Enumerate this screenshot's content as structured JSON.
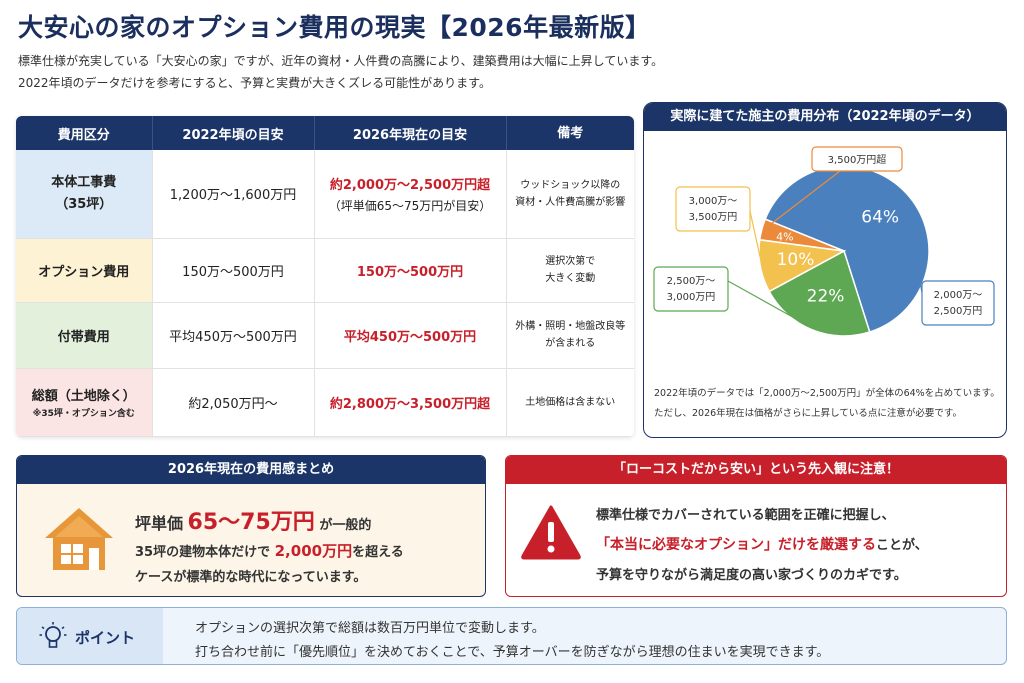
{
  "title": "大安心の家のオプション費用の現実【2026年最新版】",
  "intro": [
    "標準仕様が充実している「大安心の家」ですが、近年の資材・人件費の高騰により、建築費用は大幅に上昇しています。",
    "2022年頃のデータだけを参考にすると、予算と実費が大きくズレる可能性があります。"
  ],
  "table": {
    "headers": [
      "費用区分",
      "2022年頃の目安",
      "2026年現在の目安",
      "備考"
    ],
    "rows": [
      {
        "category": "本体工事費",
        "category_sub": "（35坪）",
        "old": "1,200万～1,600万円",
        "new": "約2,000万～2,500万円超",
        "new_sub": "（坪単価65～75万円が目安）",
        "note1": "ウッドショック以降の",
        "note2": "資材・人件費高騰が影響"
      },
      {
        "category": "オプション費用",
        "old": "150万～500万円",
        "new": "150万～500万円",
        "note1": "選択次第で",
        "note2": "大きく変動"
      },
      {
        "category": "付帯費用",
        "old": "平均450万～500万円",
        "new": "平均450万～500万円",
        "note1": "外構・照明・地盤改良等",
        "note2": "が含まれる"
      },
      {
        "category": "総額（土地除く）",
        "category_sub": "※35坪・オプション含む",
        "old": "約2,050万円～",
        "new": "約2,800万～3,500万円超",
        "note1": "土地価格は含まない"
      }
    ]
  },
  "pie_panel": {
    "header": "実際に建てた施主の費用分布（2022年頃のデータ）",
    "note1": "2022年頃のデータでは「2,000万～2,500万円」が全体の64%を占めています。",
    "note2": "ただし、2026年現在は価格がさらに上昇している点に注意が必要です。"
  },
  "chart_data": {
    "type": "pie",
    "slices": [
      {
        "label_line1": "2,000万～",
        "label_line2": "2,500万円",
        "value": 64,
        "value_label": "64%",
        "color": "#4a80bd"
      },
      {
        "label_line1": "2,500万～",
        "label_line2": "3,000万円",
        "value": 22,
        "value_label": "22%",
        "color": "#5ea853"
      },
      {
        "label_line1": "3,000万～",
        "label_line2": "3,500万円",
        "value": 10,
        "value_label": "10%",
        "color": "#f2c14e"
      },
      {
        "label_line1": "3,500万円超",
        "label_line2": "",
        "value": 4,
        "value_label": "4%",
        "color": "#ec8a3c"
      }
    ]
  },
  "summary": {
    "header": "2026年現在の費用感まとめ",
    "line1_a": "坪単価",
    "line1_b": "65～75万円",
    "line1_c": "が一般的",
    "line2_a": "35坪の建物本体だけで",
    "line2_b": "2,000万円",
    "line2_c": "を超える",
    "line3": "ケースが標準的な時代になっています。"
  },
  "warning": {
    "header": "「ローコストだから安い」という先入観に注意！",
    "line1": "標準仕様でカバーされている範囲を正確に把握し、",
    "line2_red": "「本当に必要なオプション」だけを厳選する",
    "line2_rest": "ことが、",
    "line3": "予算を守りながら満足度の高い家づくりのカギです。"
  },
  "point": {
    "label": "ポイント",
    "line1": "オプションの選択次第で総額は数百万円単位で変動します。",
    "line2": "打ち合わせ前に「優先順位」を決めておくことで、予算オーバーを防ぎながら理想の住まいを実現できます。"
  },
  "colors": {
    "navy": "#1b3568",
    "red": "#c8202a",
    "orange": "#e8963a"
  },
  "icons": [
    "house-icon",
    "warning-icon",
    "lightbulb-icon"
  ]
}
